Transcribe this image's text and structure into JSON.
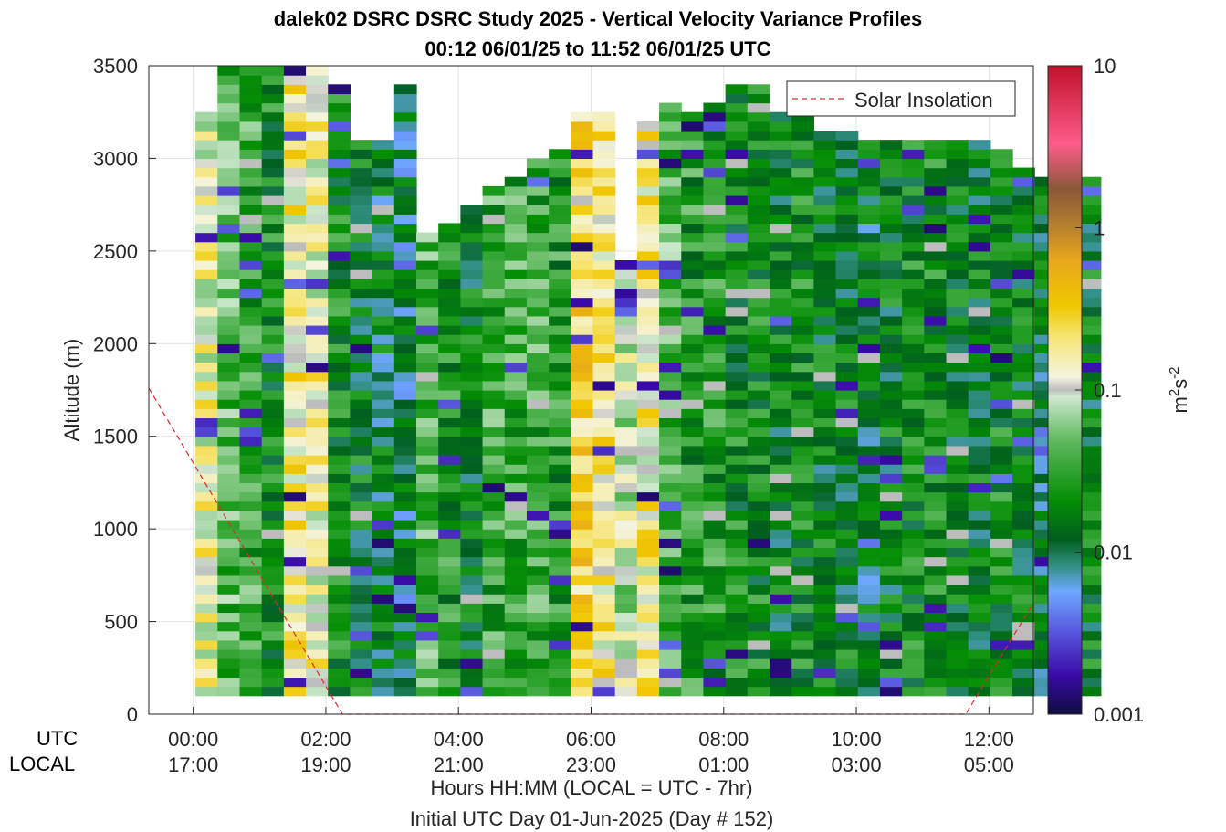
{
  "chart_data": {
    "type": "heatmap",
    "title": "dalek02 DSRC DSRC Study 2025 - Vertical Velocity Variance Profiles",
    "subtitle": "00:12 06/01/25 to 11:52 06/01/25  UTC",
    "ylabel": "Altitude (m)",
    "xlabel": "Hours HH:MM  (LOCAL = UTC - 7hr)",
    "xlabel2": "Initial UTC Day 01-Jun-2025 (Day # 152)",
    "ylim": [
      0,
      3500
    ],
    "xlim_hours": [
      -0.67,
      12.67
    ],
    "yticks": [
      "0",
      "500",
      "1000",
      "1500",
      "2000",
      "2500",
      "3000",
      "3500"
    ],
    "utc_label": "UTC",
    "local_label": "LOCAL",
    "xticks_utc": [
      "00:00",
      "02:00",
      "04:00",
      "06:00",
      "08:00",
      "10:00",
      "12:00"
    ],
    "xticks_local": [
      "17:00",
      "19:00",
      "21:00",
      "23:00",
      "01:00",
      "03:00",
      "05:00"
    ],
    "colorbar": {
      "label": "m2s-2",
      "scale": "log",
      "range": [
        0.001,
        10
      ],
      "tick_labels": [
        "0.001",
        "0.01",
        "0.1",
        "1",
        "10"
      ]
    },
    "legend": {
      "entry": "Solar Insolation",
      "placement": "top-right",
      "style": "dashed red"
    },
    "solar_insolation": {
      "x_hours": [
        -0.67,
        2.25,
        11.65,
        12.67
      ],
      "y_m": [
        1760,
        0,
        0,
        600
      ]
    },
    "profiles": {
      "first_hour": 0.2,
      "step_hours": 0.333,
      "bin_bottom_m": 100,
      "bin_height_m": 50,
      "top_altitudes_m": [
        3250,
        3500,
        3500,
        3500,
        3500,
        3500,
        3400,
        3100,
        3100,
        3400,
        2600,
        2650,
        2750,
        2850,
        2900,
        3000,
        3050,
        3250,
        3250,
        2450,
        3200,
        3300,
        3250,
        3300,
        3400,
        3400,
        3250,
        3250,
        3150,
        3150,
        3100,
        3100,
        3100,
        3100,
        3100,
        3100,
        3050,
        2950,
        2900,
        2900,
        2900
      ],
      "estimated_log10_variance_by_column": [
        -0.9,
        -1.4,
        -1.5,
        -1.7,
        -0.8,
        -0.9,
        -1.7,
        -1.8,
        -1.9,
        -2.0,
        -1.4,
        -1.6,
        -1.8,
        -1.5,
        -1.5,
        -1.5,
        -1.6,
        -0.6,
        -0.8,
        -1.1,
        -0.8,
        -1.4,
        -1.6,
        -1.6,
        -1.7,
        -1.7,
        -1.8,
        -1.7,
        -1.8,
        -1.8,
        -1.9,
        -1.8,
        -1.7,
        -1.7,
        -1.8,
        -1.8,
        -1.7,
        -1.8,
        -1.9,
        -1.9,
        -1.8
      ]
    }
  }
}
